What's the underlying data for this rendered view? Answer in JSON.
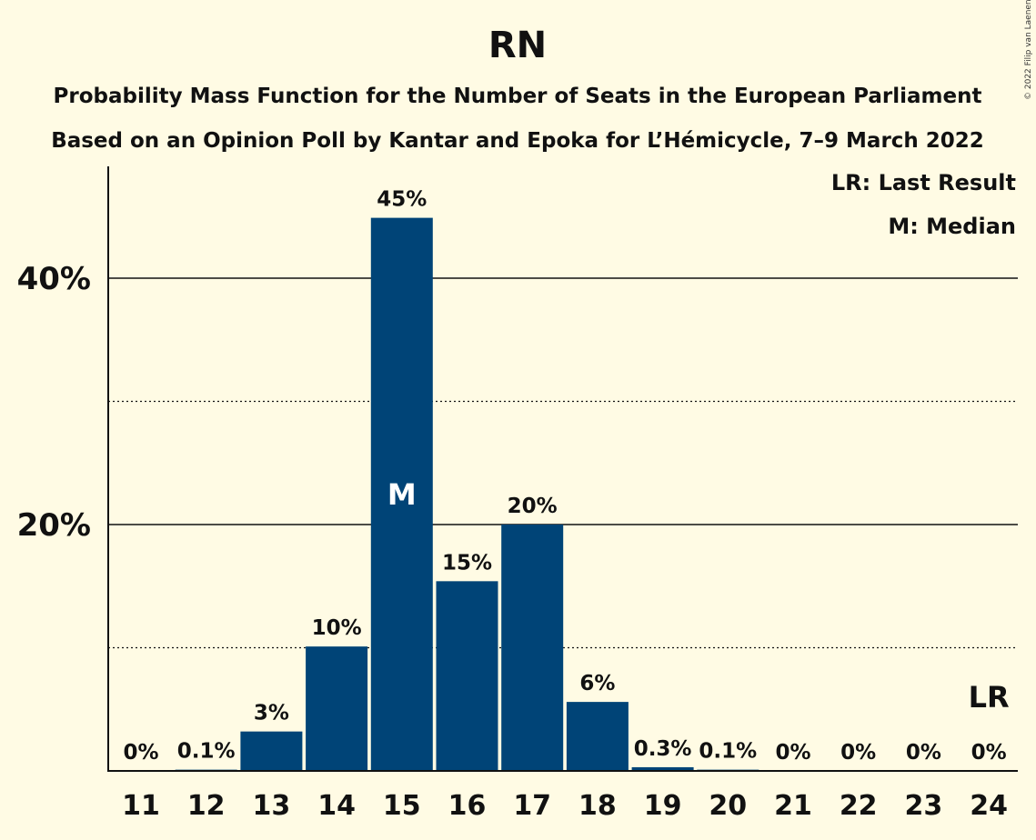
{
  "chart_data": {
    "type": "bar",
    "title": "RN",
    "subtitle_lines": [
      "Probability Mass Function for the Number of Seats in the European Parliament",
      "Based on an Opinion Poll by Kantar and Epoka for L’Hémicycle, 7–9 March 2022"
    ],
    "categories": [
      "11",
      "12",
      "13",
      "14",
      "15",
      "16",
      "17",
      "18",
      "19",
      "20",
      "21",
      "22",
      "23",
      "24"
    ],
    "values": [
      0,
      0.1,
      3.2,
      10.1,
      44.9,
      15.4,
      20.0,
      5.6,
      0.3,
      0.1,
      0,
      0,
      0,
      0
    ],
    "value_labels": [
      "0%",
      "0.1%",
      "3%",
      "10%",
      "45%",
      "15%",
      "20%",
      "6%",
      "0.3%",
      "0.1%",
      "0%",
      "0%",
      "0%",
      "0%"
    ],
    "ylim": [
      0,
      49
    ],
    "yticks": [
      20,
      40
    ],
    "ytick_labels": [
      "20%",
      "40%"
    ],
    "minor_gridlines": [
      10,
      30
    ],
    "median_category": "15",
    "median_marker": "M",
    "last_result_category": "24",
    "last_result_marker": "LR",
    "legend": [
      "LR: Last Result",
      "M: Median"
    ],
    "legend_position": "top-right",
    "bar_color": "#004477",
    "background_color": "#fffbe4",
    "copyright": "© 2022 Filip van Laenen"
  }
}
